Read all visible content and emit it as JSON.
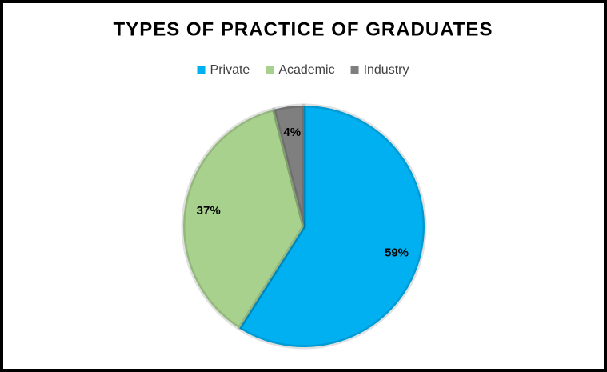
{
  "chart_data": {
    "type": "pie",
    "title": "TYPES OF PRACTICE OF GRADUATES",
    "categories": [
      "Private",
      "Academic",
      "Industry"
    ],
    "values": [
      59,
      37,
      4
    ],
    "value_labels": [
      "59%",
      "37%",
      "4%"
    ],
    "colors": [
      "#00b0f0",
      "#a9d18e",
      "#7f7f7f"
    ],
    "legend": "top"
  }
}
